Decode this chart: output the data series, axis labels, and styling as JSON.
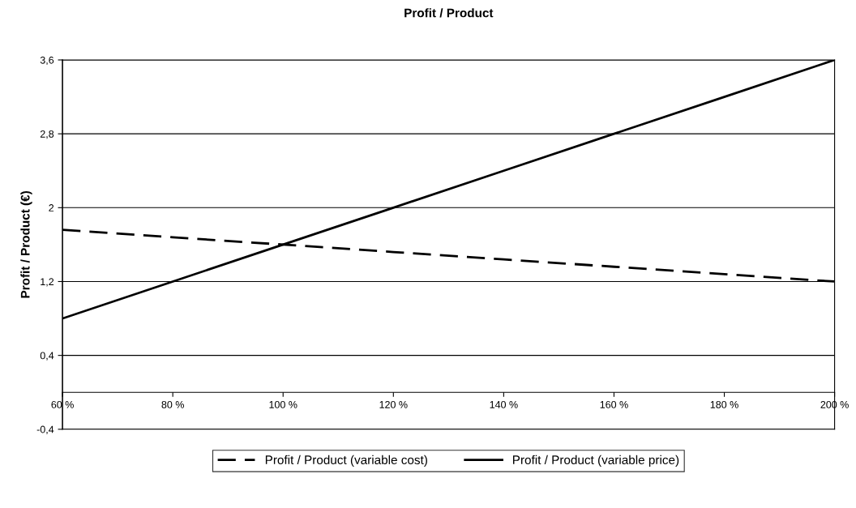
{
  "chart_data": {
    "type": "line",
    "title": "Profit / Product",
    "ylabel": "Profit / Product (€)",
    "x": [
      60,
      80,
      100,
      120,
      140,
      160,
      180,
      200
    ],
    "series": [
      {
        "name": "Profit / Product (variable cost)",
        "color": "#000000",
        "line_style": "dashed",
        "values": [
          1.76,
          1.68,
          1.6,
          1.52,
          1.44,
          1.36,
          1.28,
          1.2
        ]
      },
      {
        "name": "Profit / Product (variable price)",
        "color": "#000000",
        "line_style": "solid",
        "values": [
          0.8,
          1.2,
          1.6,
          2.0,
          2.4,
          2.8,
          3.2,
          3.6
        ]
      }
    ],
    "xlim": [
      60,
      200
    ],
    "xticks": [
      {
        "value": 60,
        "label": "60 %"
      },
      {
        "value": 80,
        "label": "80 %"
      },
      {
        "value": 100,
        "label": "100 %"
      },
      {
        "value": 120,
        "label": "120 %"
      },
      {
        "value": 140,
        "label": "140 %"
      },
      {
        "value": 160,
        "label": "160 %"
      },
      {
        "value": 180,
        "label": "180 %"
      },
      {
        "value": 200,
        "label": "200 %"
      }
    ],
    "ylim": [
      -0.4,
      3.6
    ],
    "yticks": [
      {
        "value": -0.4,
        "label": "-0,4"
      },
      {
        "value": 0.4,
        "label": "0,4"
      },
      {
        "value": 1.2,
        "label": "1,2"
      },
      2,
      {
        "value": 2.8,
        "label": "2,8"
      },
      {
        "value": 3.6,
        "label": "3,6"
      }
    ],
    "grid": "y",
    "legend": "bottom",
    "marker": "none"
  }
}
